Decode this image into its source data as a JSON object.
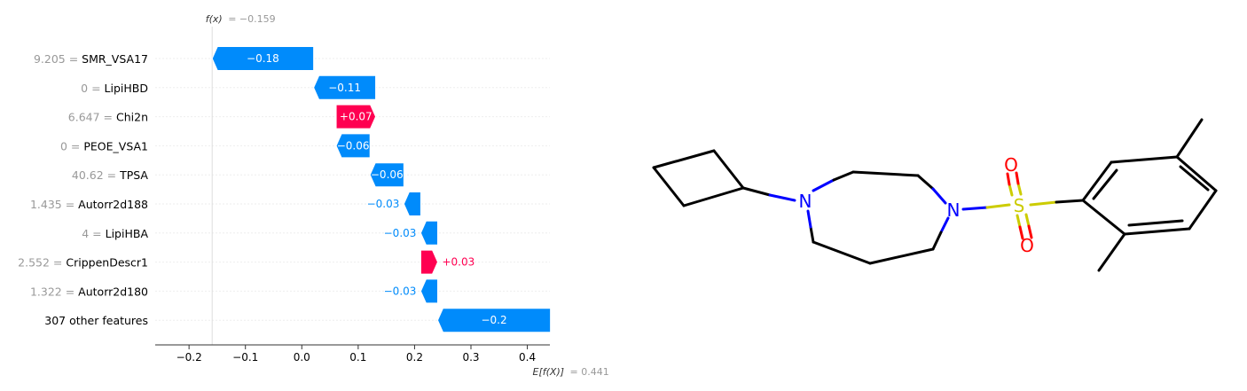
{
  "chart_data": {
    "type": "waterfall",
    "fx_label": "f(x)",
    "fx_value_text": "= −0.159",
    "fx_value": -0.159,
    "ex_label": "E[f(X)]",
    "ex_value_text": "= 0.441",
    "ex_value": 0.441,
    "xlim": [
      -0.26,
      0.44
    ],
    "xticks": [
      -0.2,
      -0.1,
      0.0,
      0.1,
      0.2,
      0.3,
      0.4
    ],
    "xtick_labels": [
      "−0.2",
      "−0.1",
      "0.0",
      "0.1",
      "0.2",
      "0.3",
      "0.4"
    ],
    "features": [
      {
        "value": "9.205",
        "name": "SMR_VSA17",
        "shap": -0.18,
        "label": "−0.18"
      },
      {
        "value": "0",
        "name": "LipiHBD",
        "shap": -0.11,
        "label": "−0.11"
      },
      {
        "value": "6.647",
        "name": "Chi2n",
        "shap": 0.07,
        "label": "+0.07"
      },
      {
        "value": "0",
        "name": "PEOE_VSA1",
        "shap": -0.06,
        "label": "−0.06"
      },
      {
        "value": "40.62",
        "name": "TPSA",
        "shap": -0.06,
        "label": "−0.06"
      },
      {
        "value": "1.435",
        "name": "Autorr2d188",
        "shap": -0.03,
        "label": "−0.03"
      },
      {
        "value": "4",
        "name": "LipiHBA",
        "shap": -0.03,
        "label": "−0.03"
      },
      {
        "value": "2.552",
        "name": "CrippenDescr1",
        "shap": 0.03,
        "label": "+0.03"
      },
      {
        "value": "1.322",
        "name": "Autorr2d180",
        "shap": -0.03,
        "label": "−0.03"
      },
      {
        "value": "",
        "name": "307 other features",
        "shap": -0.2,
        "label": "−0.2"
      }
    ],
    "colors": {
      "negative": "#008bfb",
      "positive": "#ff0051",
      "value_text": "#999999",
      "axis": "#333333"
    }
  },
  "molecule": {
    "atoms": {
      "nitrogen": "N",
      "sulfur": "S",
      "oxygen": "O"
    },
    "colors": {
      "bond": "#000000",
      "nitrogen": "#0000ff",
      "sulfur": "#cccc00",
      "oxygen": "#ff0000"
    }
  }
}
